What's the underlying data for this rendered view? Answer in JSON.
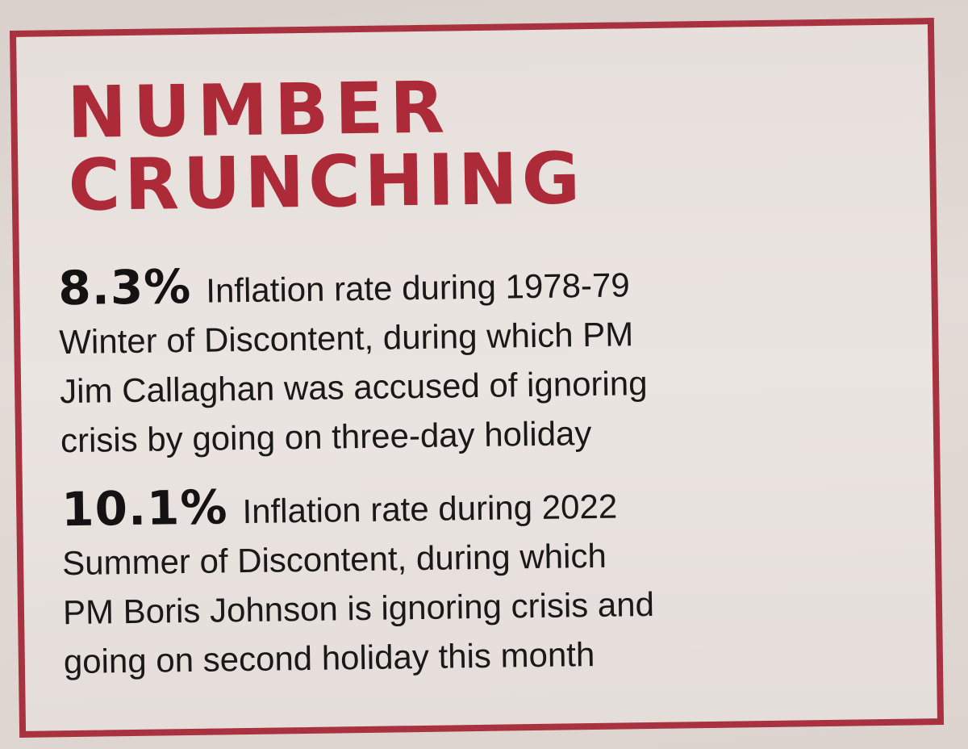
{
  "title": {
    "line1": "NUMBER",
    "line2": "CRUNCHING"
  },
  "entries": [
    {
      "stat": "8.3%",
      "text": "Inflation rate during 1978-79\nWinter of Discontent, during which PM\nJim Callaghan was accused of ignoring\ncrisis by going on three-day holiday"
    },
    {
      "stat": "10.1%",
      "text": "Inflation rate during 2022\nSummer of Discontent, during which\nPM Boris Johnson is ignoring crisis and\ngoing on second holiday this month"
    }
  ],
  "colors": {
    "accent": "#a8323f",
    "text": "#1b1918",
    "paper": "#e6dfdb"
  }
}
